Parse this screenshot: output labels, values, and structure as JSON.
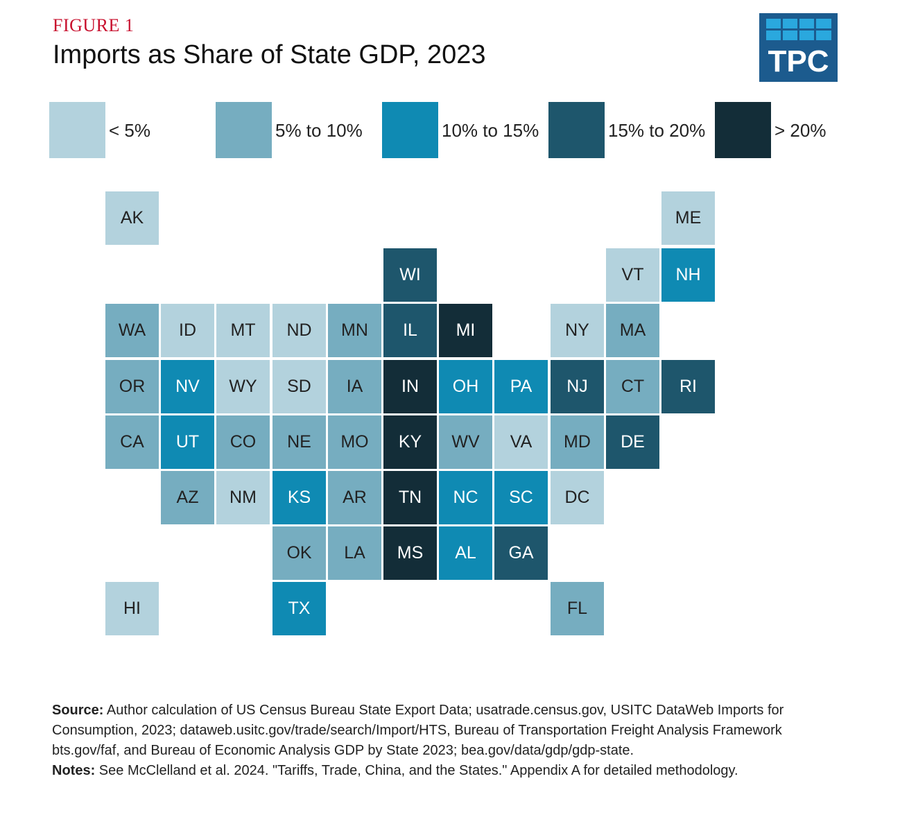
{
  "figure_label": "FIGURE 1",
  "logo": {
    "text": "TPC"
  },
  "colors": {
    "c1": "#b3d2dd",
    "c2": "#76adc0",
    "c3": "#0f8ab3",
    "c4": "#1e566c",
    "c5": "#132d38"
  },
  "chart_data": {
    "type": "tile-map",
    "title": "Imports as Share of State GDP, 2023",
    "legend": [
      {
        "label": "< 5%",
        "category": 1
      },
      {
        "label": "5% to 10%",
        "category": 2
      },
      {
        "label": "10% to 15%",
        "category": 3
      },
      {
        "label": "15% to 20%",
        "category": 4
      },
      {
        "label": "> 20%",
        "category": 5
      }
    ],
    "states": [
      {
        "abbr": "AK",
        "row": 0,
        "col": 0,
        "category": 1
      },
      {
        "abbr": "ME",
        "row": 0,
        "col": 10,
        "category": 1
      },
      {
        "abbr": "WI",
        "row": 1,
        "col": 5,
        "category": 4
      },
      {
        "abbr": "VT",
        "row": 1,
        "col": 9,
        "category": 1
      },
      {
        "abbr": "NH",
        "row": 1,
        "col": 10,
        "category": 3
      },
      {
        "abbr": "WA",
        "row": 2,
        "col": 0,
        "category": 2
      },
      {
        "abbr": "ID",
        "row": 2,
        "col": 1,
        "category": 1
      },
      {
        "abbr": "MT",
        "row": 2,
        "col": 2,
        "category": 1
      },
      {
        "abbr": "ND",
        "row": 2,
        "col": 3,
        "category": 1
      },
      {
        "abbr": "MN",
        "row": 2,
        "col": 4,
        "category": 2
      },
      {
        "abbr": "IL",
        "row": 2,
        "col": 5,
        "category": 4
      },
      {
        "abbr": "MI",
        "row": 2,
        "col": 6,
        "category": 5
      },
      {
        "abbr": "NY",
        "row": 2,
        "col": 8,
        "category": 1
      },
      {
        "abbr": "MA",
        "row": 2,
        "col": 9,
        "category": 2
      },
      {
        "abbr": "OR",
        "row": 3,
        "col": 0,
        "category": 2
      },
      {
        "abbr": "NV",
        "row": 3,
        "col": 1,
        "category": 3
      },
      {
        "abbr": "WY",
        "row": 3,
        "col": 2,
        "category": 1
      },
      {
        "abbr": "SD",
        "row": 3,
        "col": 3,
        "category": 1
      },
      {
        "abbr": "IA",
        "row": 3,
        "col": 4,
        "category": 2
      },
      {
        "abbr": "IN",
        "row": 3,
        "col": 5,
        "category": 5
      },
      {
        "abbr": "OH",
        "row": 3,
        "col": 6,
        "category": 3
      },
      {
        "abbr": "PA",
        "row": 3,
        "col": 7,
        "category": 3
      },
      {
        "abbr": "NJ",
        "row": 3,
        "col": 8,
        "category": 4
      },
      {
        "abbr": "CT",
        "row": 3,
        "col": 9,
        "category": 2
      },
      {
        "abbr": "RI",
        "row": 3,
        "col": 10,
        "category": 4
      },
      {
        "abbr": "CA",
        "row": 4,
        "col": 0,
        "category": 2
      },
      {
        "abbr": "UT",
        "row": 4,
        "col": 1,
        "category": 3
      },
      {
        "abbr": "CO",
        "row": 4,
        "col": 2,
        "category": 2
      },
      {
        "abbr": "NE",
        "row": 4,
        "col": 3,
        "category": 2
      },
      {
        "abbr": "MO",
        "row": 4,
        "col": 4,
        "category": 2
      },
      {
        "abbr": "KY",
        "row": 4,
        "col": 5,
        "category": 5
      },
      {
        "abbr": "WV",
        "row": 4,
        "col": 6,
        "category": 2
      },
      {
        "abbr": "VA",
        "row": 4,
        "col": 7,
        "category": 1
      },
      {
        "abbr": "MD",
        "row": 4,
        "col": 8,
        "category": 2
      },
      {
        "abbr": "DE",
        "row": 4,
        "col": 9,
        "category": 4
      },
      {
        "abbr": "AZ",
        "row": 5,
        "col": 1,
        "category": 2
      },
      {
        "abbr": "NM",
        "row": 5,
        "col": 2,
        "category": 1
      },
      {
        "abbr": "KS",
        "row": 5,
        "col": 3,
        "category": 3
      },
      {
        "abbr": "AR",
        "row": 5,
        "col": 4,
        "category": 2
      },
      {
        "abbr": "TN",
        "row": 5,
        "col": 5,
        "category": 5
      },
      {
        "abbr": "NC",
        "row": 5,
        "col": 6,
        "category": 3
      },
      {
        "abbr": "SC",
        "row": 5,
        "col": 7,
        "category": 3
      },
      {
        "abbr": "DC",
        "row": 5,
        "col": 8,
        "category": 1
      },
      {
        "abbr": "OK",
        "row": 6,
        "col": 3,
        "category": 2
      },
      {
        "abbr": "LA",
        "row": 6,
        "col": 4,
        "category": 2
      },
      {
        "abbr": "MS",
        "row": 6,
        "col": 5,
        "category": 5
      },
      {
        "abbr": "AL",
        "row": 6,
        "col": 6,
        "category": 3
      },
      {
        "abbr": "GA",
        "row": 6,
        "col": 7,
        "category": 4
      },
      {
        "abbr": "HI",
        "row": 7,
        "col": 0,
        "category": 1
      },
      {
        "abbr": "TX",
        "row": 7,
        "col": 3,
        "category": 3
      },
      {
        "abbr": "FL",
        "row": 7,
        "col": 8,
        "category": 2
      }
    ]
  },
  "footer": {
    "source_label": "Source:",
    "source_text": "Author calculation of US Census Bureau State Export Data; usatrade.census.gov, USITC DataWeb Imports for Consumption, 2023; dataweb.usitc.gov/trade/search/Import/HTS, Bureau of Transportation Freight Analysis Framework bts.gov/faf, and Bureau of Economic Analysis GDP by State 2023; bea.gov/data/gdp/gdp-state.",
    "notes_label": "Notes:",
    "notes_text": "See McClelland et al. 2024. \"Tariffs, Trade, China, and the States.\" Appendix A for detailed methodology."
  }
}
